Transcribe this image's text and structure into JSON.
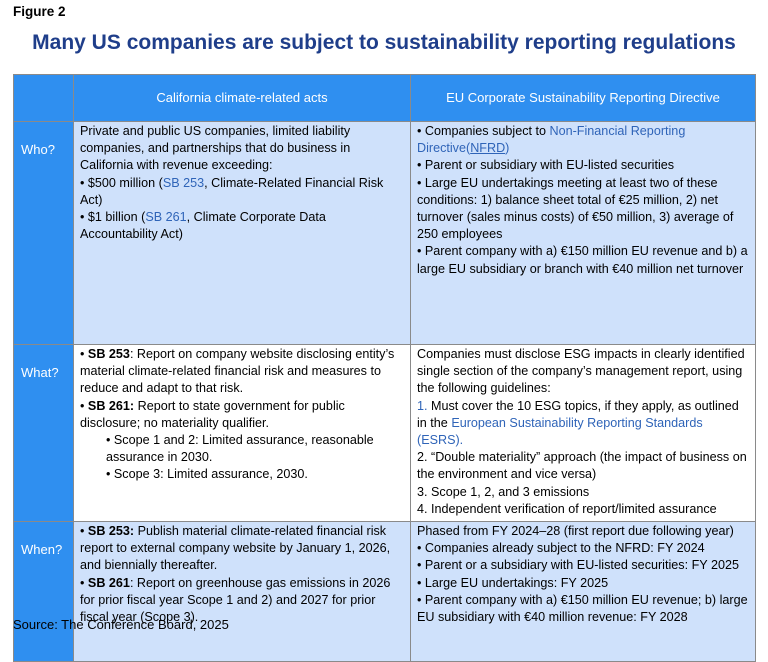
{
  "figure_label": "Figure 2",
  "title": "Many US companies are subject to sustainability reporting regulations",
  "columns": {
    "california": "California climate-related acts",
    "eu": "EU Corporate Sustainability Reporting Directive"
  },
  "rows": {
    "who": {
      "label": "Who?",
      "ca": {
        "intro": "Private and public US companies, limited liability companies, and partnerships that do business in California with revenue exceeding:",
        "b1_pre": "• $500 million (",
        "b1_link": "SB 253",
        "b1_post": ", Climate-Related Financial Risk Act)",
        "b2_pre": "• $1 billion (",
        "b2_link": "SB 261",
        "b2_post": ", Climate Corporate Data Accountability Act)"
      },
      "eu": {
        "b1_pre": "• Companies subject to ",
        "b1_link": "Non-Financial Reporting Directive(",
        "b1_link_ul": "NFRD",
        "b1_link_end": ")",
        "b2": "• Parent or subsidiary with EU-listed securities",
        "b3": "• Large EU undertakings meeting at least two of these conditions: 1) balance sheet total of €25 million, 2) net turnover (sales minus costs) of €50 million, 3) average of 250 employees",
        "b4": "• Parent company with a) €150 million EU revenue and b) a large EU subsidiary or branch with €40 million net turnover"
      }
    },
    "what": {
      "label": "What?",
      "ca": {
        "b1_bold": "SB 253",
        "b1_rest": ": Report on company website disclosing entity’s material climate-related financial risk and measures to reduce and adapt to that risk.",
        "b2_bold": "SB 261:",
        "b2_rest": " Report to state government for public disclosure; no materiality qualifier.",
        "s1": "• Scope 1 and 2: Limited assurance, reasonable assurance in 2030.",
        "s2": "• Scope 3: Limited assurance, 2030.",
        "bullet": "•"
      },
      "eu": {
        "intro": "Companies must disclose ESG impacts in clearly identified single section of the company’s management report, using the following guidelines:",
        "i1_num": "1.",
        "i1_pre": " Must cover the 10 ESG topics, if they apply, as outlined in the ",
        "i1_link": "European Sustainability Reporting Standards (ESRS).",
        "i2": "2. “Double materiality” approach (the impact of business on the environment and vice versa)",
        "i3": "3. Scope 1, 2, and 3 emissions",
        "i4": "4. Independent verification of report/limited assurance"
      }
    },
    "when": {
      "label": "When?",
      "ca": {
        "b1_bold": "SB 253:",
        "b1_rest": " Publish material climate-related financial risk report to external company website by January 1, 2026, and biennially thereafter.",
        "b2_bold": "SB 261",
        "b2_rest": ": Report on greenhouse gas emissions in 2026 for prior fiscal year Scope 1 and 2) and 2027 for prior fiscal year (Scope 3).",
        "bullet": "•"
      },
      "eu": {
        "intro": "Phased from FY 2024–28 (first report due following year)",
        "b1": "• Companies already subject to the NFRD: FY 2024",
        "b2": "• Parent or a subsidiary with EU-listed securities: FY 2025",
        "b3": "• Large EU undertakings: FY 2025",
        "b4": "• Parent company with a) €150 million EU revenue; b) large EU subsidiary with €40 million revenue: FY 2028"
      }
    }
  },
  "source": "Source: The Conference Board, 2025",
  "colors": {
    "title": "#1f3e8a",
    "header_blue": "#2f8ff0",
    "light_blue_cell": "#cfe1fb",
    "link": "#2f64b8"
  }
}
